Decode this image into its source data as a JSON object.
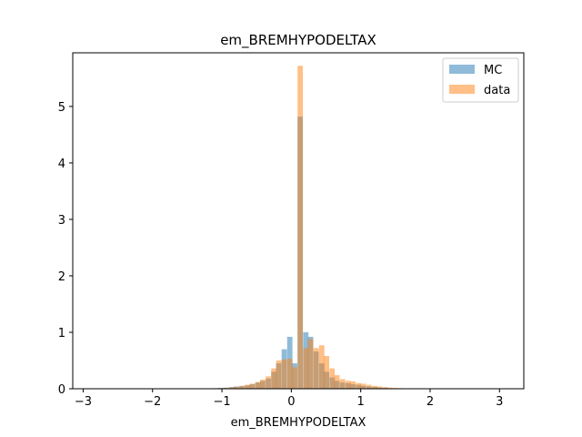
{
  "chart_data": {
    "type": "bar",
    "title": "em_BREMHYPODELTAX",
    "xlabel": "em_BREMHYPODELTAX",
    "ylabel": "",
    "xlim": [
      -3.15,
      3.35
    ],
    "ylim": [
      0,
      5.95
    ],
    "xticks": [
      -3,
      -2,
      -1,
      0,
      1,
      2,
      3
    ],
    "yticks": [
      0,
      1,
      2,
      3,
      4,
      5
    ],
    "grid": false,
    "legend_position": "top-right",
    "bin_width": 0.076,
    "series": [
      {
        "name": "MC",
        "color": "#1f77b4",
        "opacity": 0.5,
        "bins": [
          [
            -2.9,
            0.005
          ],
          [
            -1.14,
            0.01
          ],
          [
            -1.06,
            0.015
          ],
          [
            -0.98,
            0.02
          ],
          [
            -0.9,
            0.03
          ],
          [
            -0.83,
            0.04
          ],
          [
            -0.75,
            0.05
          ],
          [
            -0.67,
            0.06
          ],
          [
            -0.6,
            0.08
          ],
          [
            -0.52,
            0.11
          ],
          [
            -0.45,
            0.14
          ],
          [
            -0.37,
            0.18
          ],
          [
            -0.29,
            0.3
          ],
          [
            -0.22,
            0.45
          ],
          [
            -0.14,
            0.7
          ],
          [
            -0.06,
            0.92
          ],
          [
            0.01,
            0.45
          ],
          [
            0.09,
            4.82
          ],
          [
            0.17,
            1.0
          ],
          [
            0.24,
            0.92
          ],
          [
            0.32,
            0.66
          ],
          [
            0.4,
            0.45
          ],
          [
            0.47,
            0.3
          ],
          [
            0.55,
            0.2
          ],
          [
            0.62,
            0.14
          ],
          [
            0.7,
            0.11
          ],
          [
            0.78,
            0.1
          ],
          [
            0.85,
            0.08
          ],
          [
            0.93,
            0.07
          ],
          [
            1.0,
            0.05
          ],
          [
            1.08,
            0.04
          ],
          [
            1.16,
            0.03
          ],
          [
            1.23,
            0.02
          ],
          [
            1.31,
            0.015
          ],
          [
            1.38,
            0.01
          ],
          [
            1.46,
            0.008
          ],
          [
            1.54,
            0.005
          ],
          [
            1.61,
            0.004
          ],
          [
            1.69,
            0.003
          ],
          [
            1.77,
            0.002
          ],
          [
            3.2,
            0.002
          ]
        ]
      },
      {
        "name": "data",
        "color": "#ff7f0e",
        "opacity": 0.5,
        "bins": [
          [
            -2.9,
            0.004
          ],
          [
            -1.14,
            0.005
          ],
          [
            -1.06,
            0.01
          ],
          [
            -0.98,
            0.015
          ],
          [
            -0.9,
            0.025
          ],
          [
            -0.83,
            0.035
          ],
          [
            -0.75,
            0.05
          ],
          [
            -0.67,
            0.07
          ],
          [
            -0.6,
            0.09
          ],
          [
            -0.52,
            0.12
          ],
          [
            -0.45,
            0.16
          ],
          [
            -0.37,
            0.22
          ],
          [
            -0.29,
            0.36
          ],
          [
            -0.22,
            0.5
          ],
          [
            -0.14,
            0.52
          ],
          [
            -0.06,
            0.53
          ],
          [
            0.01,
            0.38
          ],
          [
            0.09,
            5.72
          ],
          [
            0.17,
            0.72
          ],
          [
            0.24,
            0.88
          ],
          [
            0.32,
            0.72
          ],
          [
            0.4,
            0.77
          ],
          [
            0.47,
            0.58
          ],
          [
            0.55,
            0.36
          ],
          [
            0.62,
            0.24
          ],
          [
            0.7,
            0.17
          ],
          [
            0.78,
            0.14
          ],
          [
            0.85,
            0.13
          ],
          [
            0.93,
            0.1
          ],
          [
            1.0,
            0.09
          ],
          [
            1.08,
            0.07
          ],
          [
            1.16,
            0.05
          ],
          [
            1.23,
            0.04
          ],
          [
            1.31,
            0.03
          ],
          [
            1.38,
            0.02
          ],
          [
            1.46,
            0.015
          ],
          [
            1.54,
            0.01
          ],
          [
            1.61,
            0.008
          ],
          [
            1.69,
            0.006
          ],
          [
            1.77,
            0.004
          ],
          [
            3.2,
            0.002
          ]
        ]
      }
    ]
  }
}
